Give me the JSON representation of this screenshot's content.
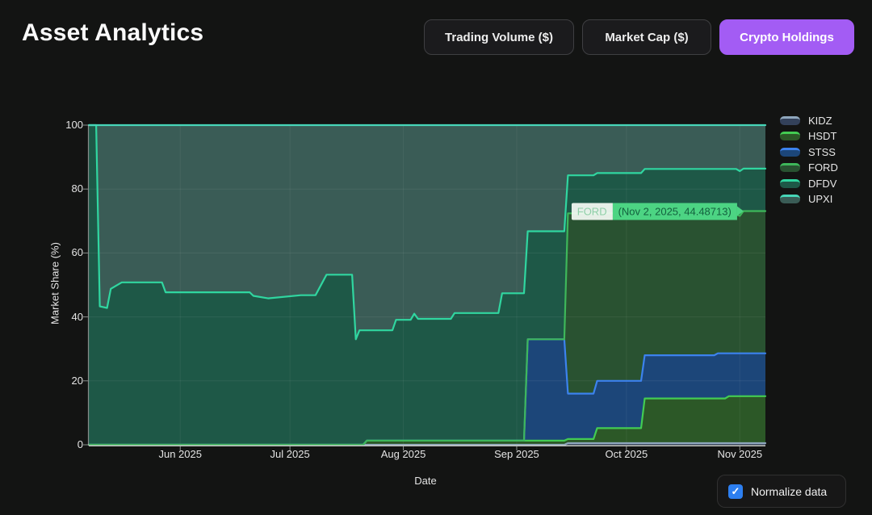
{
  "page": {
    "title": "Asset Analytics"
  },
  "toolbar": {
    "buttons": [
      {
        "label": "Trading Volume ($)",
        "active": false
      },
      {
        "label": "Market Cap ($)",
        "active": false
      },
      {
        "label": "Crypto Holdings",
        "active": true
      }
    ],
    "active_color": "#a35cf4"
  },
  "tooltip": {
    "series": "FORD",
    "text": "(Nov 2, 2025, 44.48713)",
    "date": "2025-11-02",
    "box_color": "#4cd483"
  },
  "controls": {
    "normalize_label": "Normalize data",
    "normalize_checked": true,
    "checkmark": "✓",
    "checkbox_color": "#2d7ff0"
  },
  "chart_data": {
    "type": "area",
    "stacked": true,
    "normalized_total": 100,
    "title": "",
    "xlabel": "Date",
    "ylabel": "Market Share (%)",
    "ylim": [
      0,
      100
    ],
    "yticks": [
      0,
      20,
      40,
      60,
      80,
      100
    ],
    "x_range": [
      "2025-05-07",
      "2025-11-08"
    ],
    "xticks": [
      {
        "date": "2025-06-01",
        "label": "Jun 2025"
      },
      {
        "date": "2025-07-01",
        "label": "Jul 2025"
      },
      {
        "date": "2025-08-01",
        "label": "Aug 2025"
      },
      {
        "date": "2025-09-01",
        "label": "Sep 2025"
      },
      {
        "date": "2025-10-01",
        "label": "Oct 2025"
      },
      {
        "date": "2025-11-01",
        "label": "Nov 2025"
      }
    ],
    "grid": true,
    "legend_position": "right",
    "dates": [
      "2025-05-07",
      "2025-05-09",
      "2025-05-10",
      "2025-05-12",
      "2025-05-13",
      "2025-05-16",
      "2025-05-27",
      "2025-05-28",
      "2025-06-20",
      "2025-06-21",
      "2025-06-25",
      "2025-07-04",
      "2025-07-08",
      "2025-07-11",
      "2025-07-18",
      "2025-07-19",
      "2025-07-20",
      "2025-07-21",
      "2025-07-22",
      "2025-07-29",
      "2025-07-30",
      "2025-08-03",
      "2025-08-04",
      "2025-08-05",
      "2025-08-14",
      "2025-08-15",
      "2025-08-27",
      "2025-08-28",
      "2025-09-03",
      "2025-09-04",
      "2025-09-14",
      "2025-09-15",
      "2025-09-22",
      "2025-09-23",
      "2025-10-05",
      "2025-10-06",
      "2025-10-25",
      "2025-10-26",
      "2025-10-28",
      "2025-10-29",
      "2025-10-31",
      "2025-11-01",
      "2025-11-02",
      "2025-11-08"
    ],
    "series": [
      {
        "name": "KIDZ",
        "line": "#8fa7bd",
        "fill": "#33415a",
        "values": [
          0,
          0,
          0,
          0,
          0,
          0,
          0,
          0,
          0,
          0,
          0,
          0,
          0,
          0,
          0,
          0,
          0,
          0,
          0,
          0,
          0,
          0,
          0,
          0,
          0,
          0,
          0,
          0,
          0,
          0,
          0,
          0.5,
          0.5,
          0.5,
          0.5,
          0.5,
          0.5,
          0.5,
          0.5,
          0.5,
          0.5,
          0.5,
          0.5,
          0.5
        ]
      },
      {
        "name": "HSDT",
        "line": "#43cc52",
        "fill": "#2c5827",
        "values": [
          0,
          0,
          0,
          0,
          0,
          0,
          0,
          0,
          0,
          0,
          0,
          0,
          0,
          0,
          0,
          0,
          0,
          0,
          1.3,
          1.3,
          1.3,
          1.3,
          1.3,
          1.3,
          1.3,
          1.3,
          1.3,
          1.3,
          1.3,
          1.3,
          1.3,
          1.3,
          1.3,
          4.7,
          4.7,
          14,
          14,
          14,
          14,
          14.7,
          14.7,
          14.7,
          14.7,
          14.7
        ]
      },
      {
        "name": "STSS",
        "line": "#3c82ee",
        "fill": "#1c4679",
        "values": [
          0,
          0,
          0,
          0,
          0,
          0,
          0,
          0,
          0,
          0,
          0,
          0,
          0,
          0,
          0,
          0,
          0,
          0,
          0,
          0,
          0,
          0,
          0,
          0,
          0,
          0,
          0,
          0,
          0,
          31.7,
          31.7,
          14.2,
          14.2,
          14.8,
          14.8,
          13.5,
          13.5,
          14.1,
          14.1,
          13.4,
          13.4,
          13.4,
          13.4,
          13.4
        ]
      },
      {
        "name": "FORD",
        "line": "#3eb75a",
        "fill": "#295231",
        "values": [
          0,
          0,
          0,
          0,
          0,
          0,
          0,
          0,
          0,
          0,
          0,
          0,
          0,
          0,
          0,
          0,
          0,
          0,
          0,
          0,
          0,
          0,
          0,
          0,
          0,
          0,
          0,
          0,
          0,
          0,
          0,
          56.4,
          56.4,
          52.4,
          52.4,
          44.3,
          44.3,
          43.9,
          43.9,
          43.4,
          43.4,
          43.0,
          44.487,
          44.5
        ]
      },
      {
        "name": "DFDV",
        "line": "#30d6a0",
        "fill": "#1e5847",
        "values": [
          100,
          100,
          43.3,
          42.8,
          48.8,
          50.8,
          50.8,
          47.7,
          47.7,
          46.6,
          45.8,
          46.8,
          46.8,
          53.2,
          53.2,
          33.0,
          35.8,
          35.8,
          34.5,
          34.5,
          37.8,
          37.8,
          39.7,
          38.1,
          38.1,
          39.9,
          39.9,
          46.1,
          46.1,
          33.8,
          33.8,
          11.9,
          11.9,
          12.6,
          12.6,
          14.0,
          14.0,
          13.8,
          13.8,
          14.3,
          14.3,
          14.0,
          13.3,
          13.3
        ]
      },
      {
        "name": "UPXI",
        "line": "#47d6b8",
        "fill": "#3a5c56",
        "values": [
          0,
          0,
          56.7,
          57.2,
          51.2,
          49.2,
          49.2,
          52.3,
          52.3,
          53.4,
          54.2,
          53.2,
          53.2,
          46.8,
          46.8,
          67.0,
          64.2,
          64.2,
          64.2,
          64.2,
          60.9,
          60.9,
          59.0,
          60.6,
          60.6,
          58.8,
          58.8,
          52.6,
          52.6,
          33.2,
          33.2,
          15.7,
          15.7,
          15.0,
          15.0,
          13.7,
          13.7,
          13.7,
          13.7,
          13.7,
          13.7,
          14.4,
          13.6,
          13.6
        ]
      }
    ]
  }
}
